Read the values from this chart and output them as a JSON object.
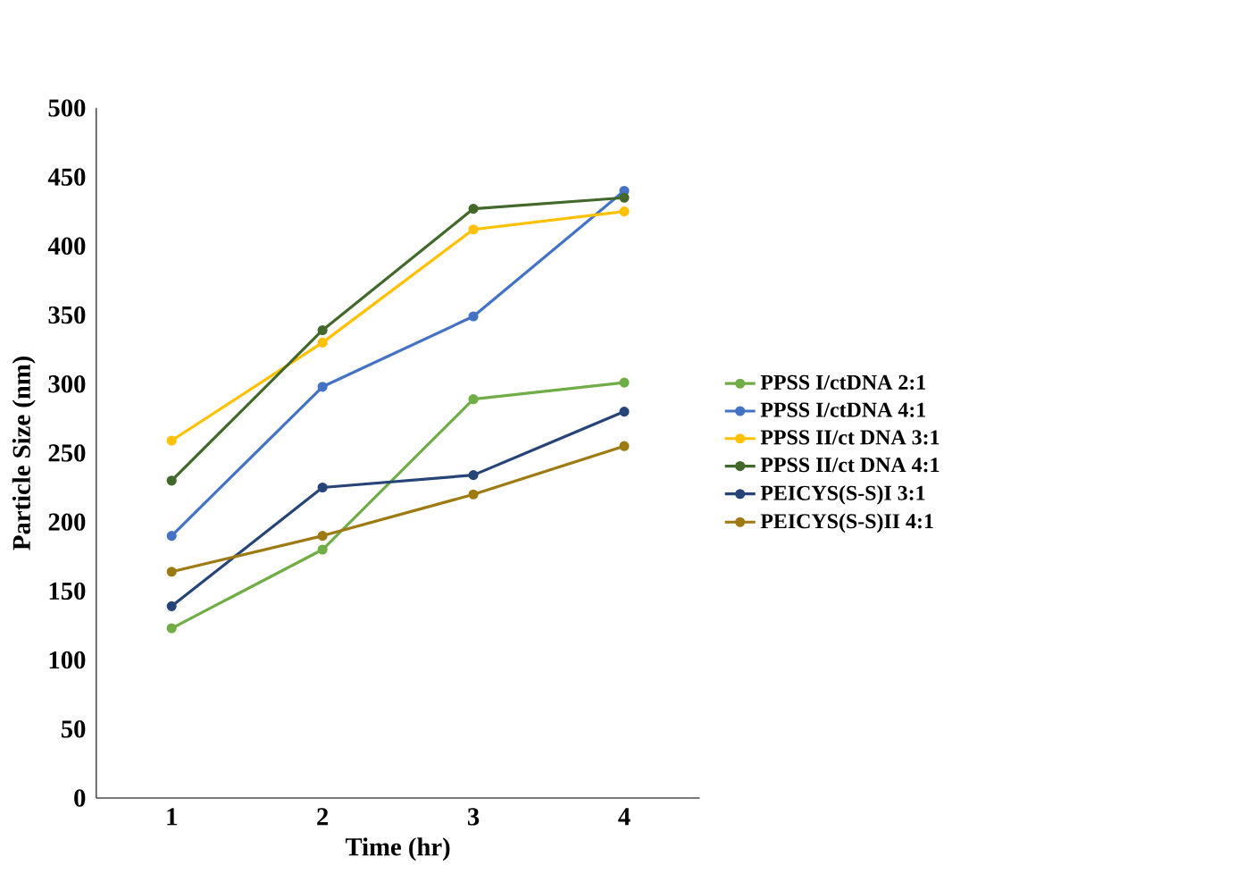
{
  "chart_data": {
    "type": "line",
    "xlabel": "Time (hr)",
    "ylabel": "Particle Size (nm)",
    "categories": [
      "1",
      "2",
      "3",
      "4"
    ],
    "series": [
      {
        "name": "PPSS I/ctDNA 2:1",
        "color": "#70ad47",
        "values": [
          123,
          180,
          289,
          301
        ]
      },
      {
        "name": "PPSS I/ctDNA 4:1",
        "color": "#4472c4",
        "values": [
          190,
          298,
          349,
          440
        ]
      },
      {
        "name": "PPSS II/ct DNA 3:1",
        "color": "#ffc000",
        "values": [
          259,
          330,
          412,
          425
        ]
      },
      {
        "name": "PPSS II/ct DNA 4:1",
        "color": "#43682b",
        "values": [
          230,
          339,
          427,
          435
        ]
      },
      {
        "name": "PEICYS(S-S)I 3:1",
        "color": "#264478",
        "values": [
          139,
          225,
          234,
          280
        ]
      },
      {
        "name": "PEICYS(S-S)II 4:1",
        "color": "#9e7a12",
        "values": [
          164,
          190,
          220,
          255
        ]
      }
    ],
    "ylim": [
      0,
      500
    ],
    "yticks": [
      0,
      50,
      100,
      150,
      200,
      250,
      300,
      350,
      400,
      450,
      500
    ],
    "grid": false,
    "legend": "right",
    "marker": "circle",
    "line_style": "solid"
  }
}
